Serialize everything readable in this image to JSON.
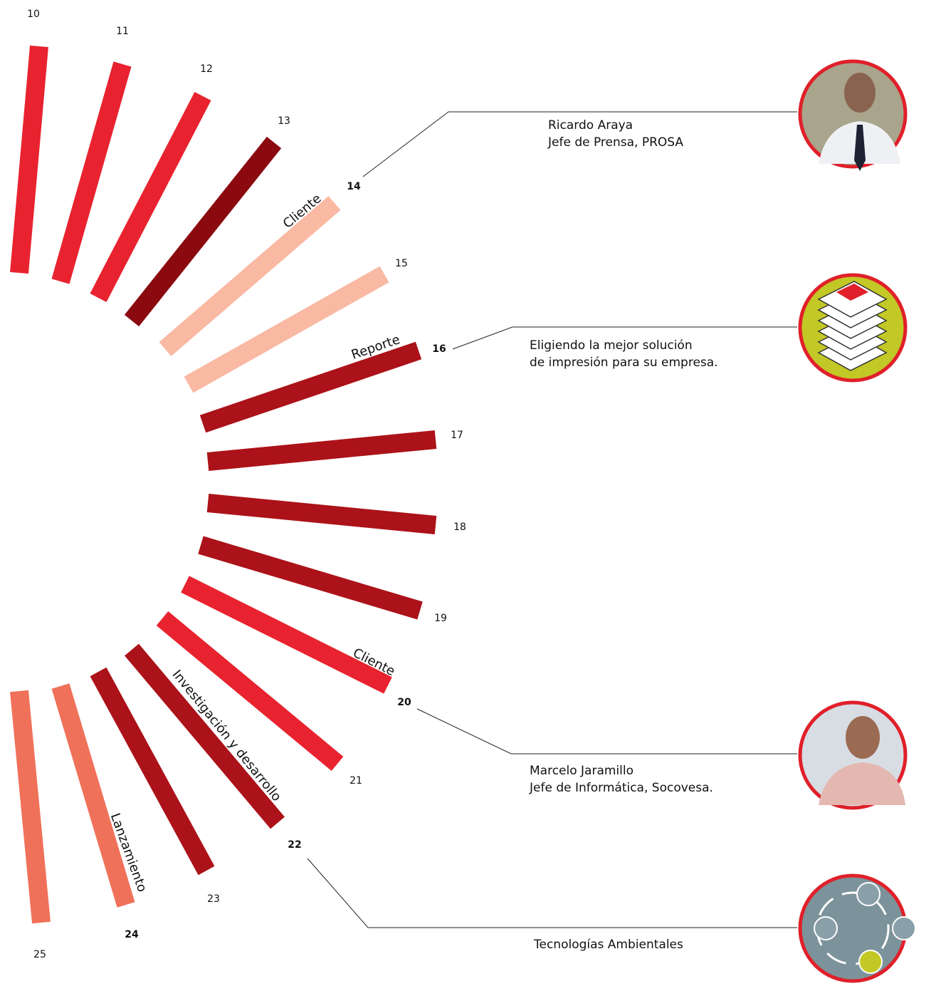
{
  "pages": [
    "10",
    "11",
    "12",
    "13",
    "14",
    "15",
    "16",
    "17",
    "18",
    "19",
    "20",
    "21",
    "22",
    "23",
    "24",
    "25"
  ],
  "section_labels": [
    "Cliente",
    "Reporte",
    "Cliente",
    "Investigación y desarrollo",
    "Lanzamiento"
  ],
  "callouts": [
    {
      "lines": [
        "Ricardo Araya",
        "Jefe de Prensa, PROSA"
      ]
    },
    {
      "lines": [
        "Eligiendo la mejor solución",
        "de impresión para su empresa."
      ]
    },
    {
      "lines": [
        "Marcelo Jaramillo",
        "Jefe de Informática, Socovesa."
      ]
    },
    {
      "lines": [
        "Tecnologías Ambientales"
      ]
    }
  ]
}
